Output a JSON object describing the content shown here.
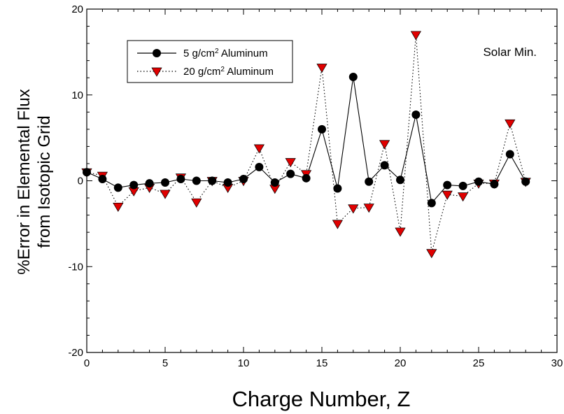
{
  "chart_data": {
    "type": "line",
    "title": "",
    "xlabel": "Charge Number, Z",
    "ylabel_line1": "%Error in Elemental Flux",
    "ylabel_line2": "from Isotopic Grid",
    "xlim": [
      0,
      30
    ],
    "ylim": [
      -20,
      20
    ],
    "xticks": [
      0,
      5,
      10,
      15,
      20,
      25,
      30
    ],
    "yticks": [
      -20,
      -10,
      0,
      10,
      20
    ],
    "grid": false,
    "legend_position": "top-left",
    "annotation": "Solar Min.",
    "series": [
      {
        "name": "5 g/cm",
        "name_sup": "2",
        "name_suffix": " Aluminum",
        "marker": "circle",
        "line_style": "solid",
        "color": "#000000",
        "x": [
          0,
          1,
          2,
          3,
          4,
          5,
          6,
          7,
          8,
          9,
          10,
          11,
          12,
          13,
          14,
          15,
          16,
          17,
          18,
          19,
          20,
          21,
          22,
          23,
          24,
          25,
          26,
          27,
          28
        ],
        "y": [
          1.0,
          0.2,
          -0.8,
          -0.5,
          -0.3,
          -0.2,
          0.2,
          0.0,
          0.0,
          -0.2,
          0.2,
          1.6,
          -0.2,
          0.8,
          0.3,
          6.0,
          -0.9,
          12.1,
          -0.1,
          1.8,
          0.1,
          7.7,
          -2.6,
          -0.5,
          -0.6,
          -0.1,
          -0.4,
          3.1,
          -0.1
        ]
      },
      {
        "name": "20 g/cm",
        "name_sup": "2",
        "name_suffix": " Aluminum",
        "marker": "triangle-down",
        "line_style": "dotted",
        "color": "#e00000",
        "x": [
          0,
          1,
          2,
          3,
          4,
          5,
          6,
          7,
          8,
          9,
          10,
          11,
          12,
          13,
          14,
          15,
          16,
          17,
          18,
          19,
          20,
          21,
          22,
          23,
          24,
          25,
          26,
          27,
          28
        ],
        "y": [
          1.0,
          0.6,
          -3.0,
          -1.2,
          -0.8,
          -1.5,
          0.4,
          -2.5,
          0.0,
          -0.8,
          0.0,
          3.8,
          -0.9,
          2.2,
          0.8,
          13.2,
          -5.0,
          -3.2,
          -3.1,
          4.3,
          -5.9,
          17.0,
          -8.4,
          -1.6,
          -1.8,
          -0.3,
          -0.3,
          6.7,
          -0.1
        ]
      }
    ]
  }
}
